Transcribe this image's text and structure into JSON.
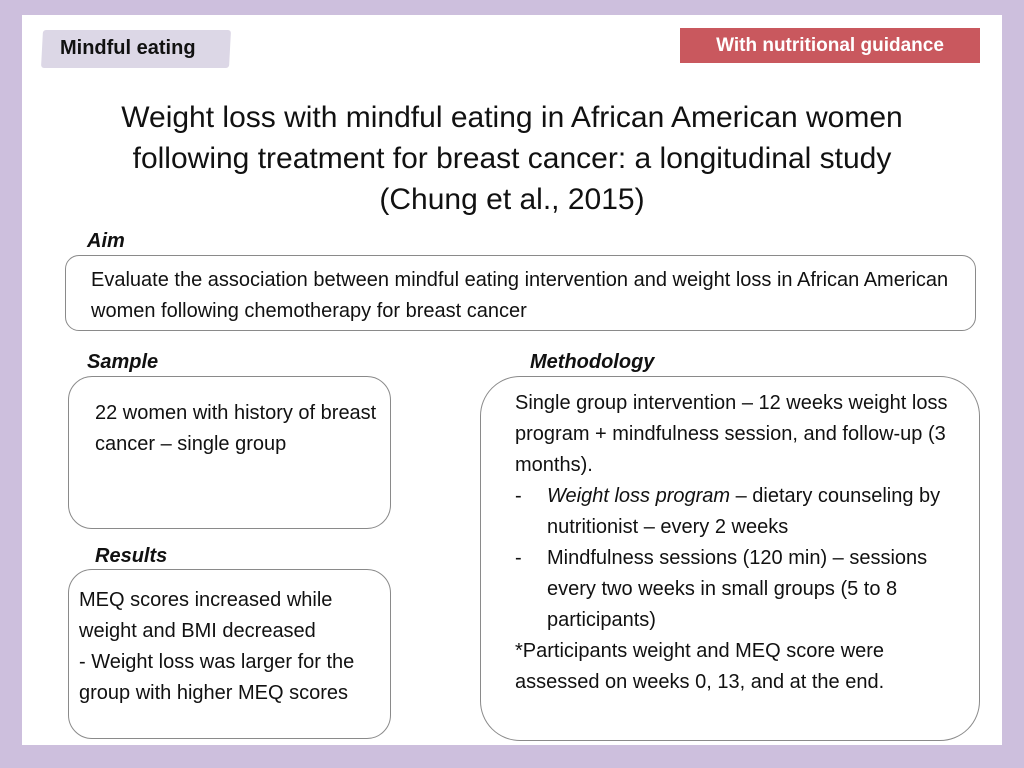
{
  "header": {
    "topic_tag": "Mindful eating",
    "category_tag": "With nutritional guidance"
  },
  "title": {
    "line1": "Weight loss with mindful eating in African American women",
    "line2": "following treatment for breast cancer: a longitudinal study",
    "line3": "(Chung et al., 2015)"
  },
  "aim": {
    "label": "Aim",
    "text": "Evaluate the association between  mindful eating intervention and weight loss in African American women following chemotherapy for breast cancer"
  },
  "sample": {
    "label": "Sample",
    "text": "22 women with history of breast cancer – single group"
  },
  "results": {
    "label": "Results",
    "line1": "MEQ scores increased while weight and BMI decreased",
    "line2": "- Weight loss was larger for the group with higher MEQ scores"
  },
  "methodology": {
    "label": "Methodology",
    "intro": "Single group intervention – 12 weeks weight loss program + mindfulness session, and follow-up (3 months).",
    "bullets": [
      {
        "dash": "-",
        "term": "Weight loss program",
        "desc": " – dietary counseling by nutritionist – every 2 weeks"
      },
      {
        "dash": "-",
        "term": "",
        "desc": "Mindfulness sessions (120 min) – sessions every two weeks in small groups (5 to 8 participants)"
      }
    ],
    "note": "*Participants weight and MEQ score were assessed on weeks  0, 13, and at the end."
  }
}
